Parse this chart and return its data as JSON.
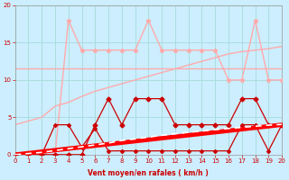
{
  "xlabel": "Vent moyen/en rafales ( km/h )",
  "x": [
    0,
    1,
    2,
    3,
    4,
    5,
    6,
    7,
    8,
    9,
    10,
    11,
    12,
    13,
    14,
    15,
    16,
    17,
    18,
    19,
    20
  ],
  "ylim": [
    0,
    20
  ],
  "xlim": [
    0,
    20
  ],
  "bg_color": "#cceeff",
  "grid_color": "#aadddd",
  "pink_flat_y": [
    11.5,
    11.5,
    11.5,
    11.5,
    11.5,
    11.5,
    11.5,
    11.5,
    11.5,
    11.5,
    11.5,
    11.5,
    11.5,
    11.5,
    11.5,
    11.5,
    11.5,
    11.5,
    11.5,
    11.5,
    11.5
  ],
  "pink_flat_color": "#ffaaaa",
  "pink_flat_lw": 1.0,
  "pink_rise_y": [
    4.0,
    4.5,
    5.0,
    6.5,
    7.0,
    7.8,
    8.5,
    9.0,
    9.5,
    10.0,
    10.5,
    11.0,
    11.5,
    12.0,
    12.5,
    13.0,
    13.5,
    13.8,
    14.0,
    14.2,
    14.5
  ],
  "pink_rise_color": "#ffaaaa",
  "pink_rise_lw": 1.0,
  "pink_peak_y": [
    0,
    0,
    0,
    0,
    18,
    14,
    14,
    14,
    14,
    14,
    18,
    14,
    14,
    14,
    14,
    14,
    10,
    10,
    18,
    10,
    10
  ],
  "pink_peak_color": "#ffaaaa",
  "pink_peak_lw": 1.0,
  "pink_peak_marker": "*",
  "pink_peak_ms": 3.5,
  "dark_mid_y": [
    0,
    0,
    0,
    0,
    0,
    0,
    4,
    7.5,
    4,
    7.5,
    7.5,
    7.5,
    4,
    4,
    4,
    4,
    4,
    7.5,
    7.5,
    4,
    4
  ],
  "dark_mid_color": "#cc0000",
  "dark_mid_lw": 0.9,
  "dark_mid_marker": "D",
  "dark_mid_ms": 2.5,
  "dark_low_y": [
    0,
    0,
    0,
    4,
    4,
    1,
    3.5,
    0.5,
    0.5,
    0.5,
    0.5,
    0.5,
    0.5,
    0.5,
    0.5,
    0.5,
    0.5,
    4,
    4,
    0.5,
    4
  ],
  "dark_low_color": "#cc0000",
  "dark_low_lw": 0.9,
  "dark_low_marker": "D",
  "dark_low_ms": 2.0,
  "thick_y": [
    0,
    0.2,
    0.4,
    0.6,
    0.8,
    1.0,
    1.2,
    1.4,
    1.6,
    1.8,
    2.0,
    2.2,
    2.4,
    2.6,
    2.8,
    3.0,
    3.2,
    3.4,
    3.6,
    3.8,
    4.0
  ],
  "thick_color": "#ff0000",
  "thick_lw": 3.5,
  "white_dash_y": [
    0,
    0.15,
    0.3,
    0.55,
    0.8,
    1.05,
    1.3,
    1.55,
    1.9,
    2.1,
    2.35,
    2.6,
    2.8,
    3.0,
    3.15,
    3.35,
    3.5,
    3.65,
    3.8,
    3.95,
    4.05
  ],
  "white_dash_color": "#ffffff",
  "white_dash_lw": 1.2
}
